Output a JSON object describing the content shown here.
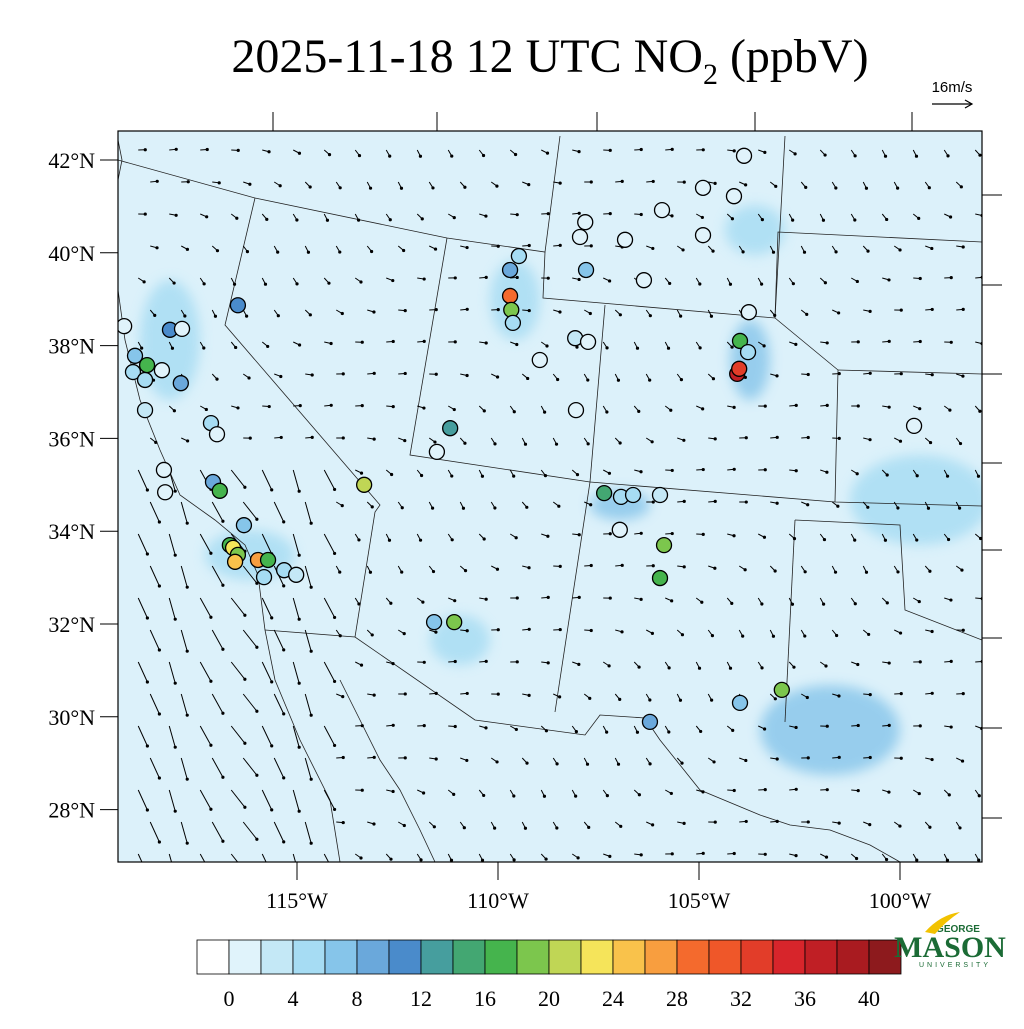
{
  "title": {
    "main": "2025-11-18 12 UTC NO",
    "subscript": "2",
    "suffix": " (ppbV)"
  },
  "wind_reference": "16m/s",
  "lat_ticks": [
    {
      "value": 42,
      "label": "42°N"
    },
    {
      "value": 40,
      "label": "40°N"
    },
    {
      "value": 38,
      "label": "38°N"
    },
    {
      "value": 36,
      "label": "36°N"
    },
    {
      "value": 34,
      "label": "34°N"
    },
    {
      "value": 32,
      "label": "32°N"
    },
    {
      "value": 30,
      "label": "30°N"
    },
    {
      "value": 28,
      "label": "28°N"
    }
  ],
  "lon_ticks": [
    {
      "value": -115,
      "label": "115°W"
    },
    {
      "value": -110,
      "label": "110°W"
    },
    {
      "value": -105,
      "label": "105°W"
    },
    {
      "value": -100,
      "label": "100°W"
    }
  ],
  "colorbar": {
    "colors": [
      "#ffffff",
      "#e0f3fb",
      "#c4e8f6",
      "#a6dcf3",
      "#86c5ea",
      "#6aa8db",
      "#4a8bcb",
      "#469e9e",
      "#43a772",
      "#45b44d",
      "#7cc64d",
      "#c0d655",
      "#f5e45a",
      "#f9c24b",
      "#f89e3f",
      "#f46a2d",
      "#ef5729",
      "#e23d29",
      "#d7252b",
      "#c01f25",
      "#a91b20",
      "#8d1a1d"
    ],
    "labels": [
      0,
      4,
      8,
      12,
      16,
      20,
      24,
      28,
      32,
      36,
      40
    ]
  },
  "logo": {
    "top": "GEORGE",
    "main": "MASON",
    "bottom": "UNIVERSITY"
  },
  "stations": [
    {
      "lon": -119.3,
      "lat": 38.42,
      "value": 1
    },
    {
      "lon": -119.03,
      "lat": 37.78,
      "value": 7
    },
    {
      "lon": -119.08,
      "lat": 37.43,
      "value": 5
    },
    {
      "lon": -118.78,
      "lat": 37.26,
      "value": 4
    },
    {
      "lon": -118.73,
      "lat": 37.58,
      "value": 17
    },
    {
      "lon": -118.16,
      "lat": 38.34,
      "value": 11
    },
    {
      "lon": -117.86,
      "lat": 38.36,
      "value": 1
    },
    {
      "lon": -118.36,
      "lat": 37.47,
      "value": 1
    },
    {
      "lon": -117.89,
      "lat": 37.19,
      "value": 8
    },
    {
      "lon": -118.78,
      "lat": 36.61,
      "value": 2
    },
    {
      "lon": -116.47,
      "lat": 38.87,
      "value": 11
    },
    {
      "lon": -117.14,
      "lat": 36.33,
      "value": 5
    },
    {
      "lon": -116.99,
      "lat": 36.09,
      "value": 1
    },
    {
      "lon": -118.31,
      "lat": 35.32,
      "value": 1
    },
    {
      "lon": -118.28,
      "lat": 34.84,
      "value": 1
    },
    {
      "lon": -117.09,
      "lat": 35.06,
      "value": 9
    },
    {
      "lon": -116.92,
      "lat": 34.87,
      "value": 17
    },
    {
      "lon": -116.32,
      "lat": 34.13,
      "value": 6
    },
    {
      "lon": -116.67,
      "lat": 33.7,
      "value": 17
    },
    {
      "lon": -116.59,
      "lat": 33.64,
      "value": 23
    },
    {
      "lon": -116.47,
      "lat": 33.49,
      "value": 19
    },
    {
      "lon": -116.54,
      "lat": 33.34,
      "value": 25
    },
    {
      "lon": -115.97,
      "lat": 33.38,
      "value": 26
    },
    {
      "lon": -115.72,
      "lat": 33.38,
      "value": 17
    },
    {
      "lon": -115.82,
      "lat": 33.01,
      "value": 5
    },
    {
      "lon": -115.32,
      "lat": 33.16,
      "value": 4
    },
    {
      "lon": -115.02,
      "lat": 33.06,
      "value": 2
    },
    {
      "lon": -113.33,
      "lat": 35.0,
      "value": 20
    },
    {
      "lon": -111.19,
      "lat": 36.22,
      "value": 13
    },
    {
      "lon": -111.52,
      "lat": 35.71,
      "value": 1
    },
    {
      "lon": -111.09,
      "lat": 32.04,
      "value": 19
    },
    {
      "lon": -111.59,
      "lat": 32.04,
      "value": 6
    },
    {
      "lon": -109.7,
      "lat": 39.07,
      "value": 28
    },
    {
      "lon": -109.67,
      "lat": 38.77,
      "value": 18
    },
    {
      "lon": -109.7,
      "lat": 39.63,
      "value": 9
    },
    {
      "lon": -109.48,
      "lat": 39.93,
      "value": 5
    },
    {
      "lon": -109.63,
      "lat": 38.49,
      "value": 4
    },
    {
      "lon": -108.96,
      "lat": 37.69,
      "value": 1
    },
    {
      "lon": -107.81,
      "lat": 39.63,
      "value": 6
    },
    {
      "lon": -108.08,
      "lat": 38.16,
      "value": 3
    },
    {
      "lon": -107.76,
      "lat": 38.08,
      "value": 1
    },
    {
      "lon": -107.83,
      "lat": 40.66,
      "value": 1
    },
    {
      "lon": -107.96,
      "lat": 40.34,
      "value": 1
    },
    {
      "lon": -106.84,
      "lat": 40.28,
      "value": 1
    },
    {
      "lon": -104.9,
      "lat": 41.4,
      "value": 1
    },
    {
      "lon": -103.88,
      "lat": 42.09,
      "value": 1
    },
    {
      "lon": -104.13,
      "lat": 41.22,
      "value": 1
    },
    {
      "lon": -105.92,
      "lat": 40.92,
      "value": 1
    },
    {
      "lon": -106.37,
      "lat": 39.41,
      "value": 1
    },
    {
      "lon": -104.9,
      "lat": 40.38,
      "value": 1
    },
    {
      "lon": -103.98,
      "lat": 38.1,
      "value": 16
    },
    {
      "lon": -103.78,
      "lat": 37.86,
      "value": 5
    },
    {
      "lon": -104.05,
      "lat": 37.39,
      "value": 37
    },
    {
      "lon": -104.0,
      "lat": 37.5,
      "value": 33
    },
    {
      "lon": -103.76,
      "lat": 38.72,
      "value": 1
    },
    {
      "lon": -108.06,
      "lat": 36.61,
      "value": 1
    },
    {
      "lon": -107.36,
      "lat": 34.82,
      "value": 14
    },
    {
      "lon": -106.94,
      "lat": 34.74,
      "value": 5
    },
    {
      "lon": -106.64,
      "lat": 34.78,
      "value": 4
    },
    {
      "lon": -105.97,
      "lat": 34.78,
      "value": 3
    },
    {
      "lon": -106.97,
      "lat": 34.03,
      "value": 1
    },
    {
      "lon": -105.87,
      "lat": 33.7,
      "value": 18
    },
    {
      "lon": -105.97,
      "lat": 32.99,
      "value": 17
    },
    {
      "lon": -106.22,
      "lat": 29.89,
      "value": 8
    },
    {
      "lon": -103.98,
      "lat": 30.3,
      "value": 6
    },
    {
      "lon": -102.94,
      "lat": 30.58,
      "value": 19
    },
    {
      "lon": -99.65,
      "lat": 36.27,
      "value": 1
    }
  ]
}
